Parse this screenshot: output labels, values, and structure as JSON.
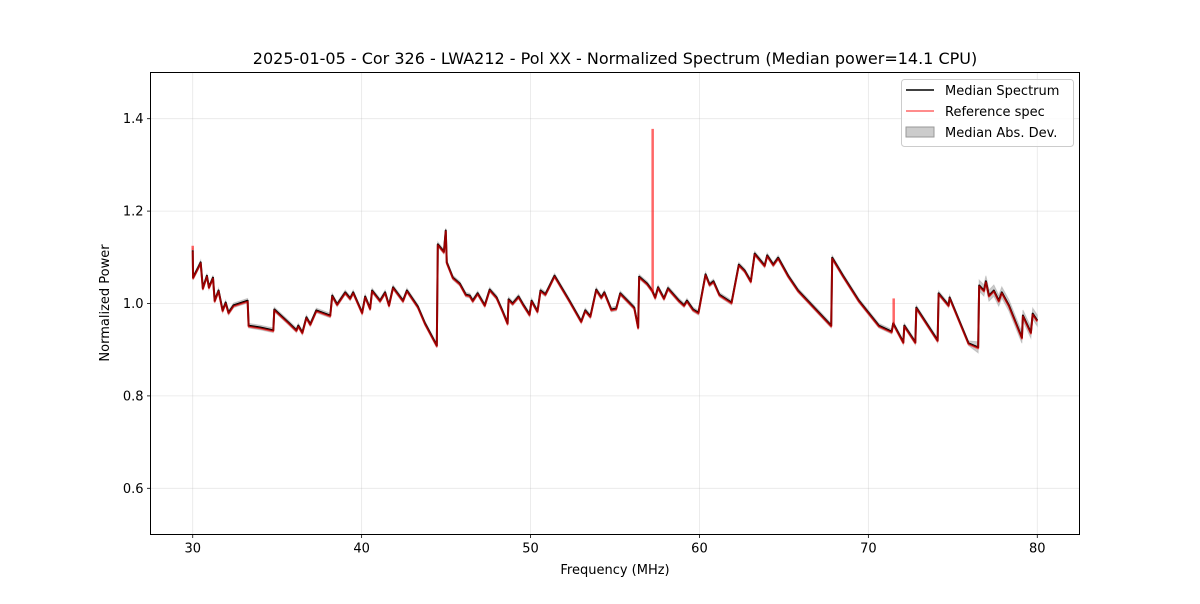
{
  "chart_data": {
    "type": "line",
    "title": "2025-01-05 - Cor 326 - LWA212 - Pol XX - Normalized Spectrum (Median power=14.1 CPU)",
    "xlabel": "Frequency (MHz)",
    "ylabel": "Normalized Power",
    "xlim": [
      27.5,
      82.5
    ],
    "ylim": [
      0.5,
      1.5
    ],
    "xticks": [
      30,
      40,
      50,
      60,
      70,
      80
    ],
    "yticks": [
      0.6,
      0.8,
      1.0,
      1.2,
      1.4
    ],
    "xtick_labels": [
      "30",
      "40",
      "50",
      "60",
      "70",
      "80"
    ],
    "ytick_labels": [
      "0.6",
      "0.8",
      "1.0",
      "1.2",
      "1.4"
    ],
    "grid": true,
    "legend": {
      "placement": "top-right",
      "entries": [
        "Median Spectrum",
        "Reference spec",
        "Median Abs. Dev."
      ]
    },
    "colors": {
      "median": "#000000",
      "reference": "#ff0000",
      "mad": "#999999"
    },
    "series": [
      {
        "name": "Median Spectrum",
        "x": [
          30,
          30.02,
          30.3,
          30.47,
          30.6,
          30.84,
          30.96,
          31.2,
          31.3,
          31.53,
          31.77,
          31.95,
          32.12,
          32.42,
          33.25,
          33.31,
          34.0,
          34.77,
          34.83,
          35.66,
          36.14,
          36.25,
          36.49,
          36.73,
          36.96,
          37.32,
          38.14,
          38.26,
          38.55,
          39.03,
          39.32,
          39.5,
          40.03,
          40.21,
          40.5,
          40.62,
          41.09,
          41.39,
          41.62,
          41.86,
          42.45,
          42.68,
          43.33,
          43.75,
          44.45,
          44.51,
          44.87,
          44.98,
          45.04,
          45.4,
          45.81,
          46.17,
          46.4,
          46.58,
          46.87,
          47.29,
          47.58,
          47.99,
          48.35,
          48.64,
          48.7,
          48.94,
          49.29,
          49.59,
          49.94,
          50.06,
          50.41,
          50.59,
          50.88,
          51.06,
          51.42,
          52.3,
          53.0,
          53.24,
          53.54,
          53.89,
          54.19,
          54.37,
          54.78,
          55.07,
          55.31,
          56.14,
          56.37,
          56.43,
          56.9,
          57.2,
          57.38,
          57.55,
          57.9,
          58.14,
          58.79,
          59.09,
          59.26,
          59.62,
          59.94,
          60.36,
          60.6,
          60.83,
          61.18,
          61.9,
          62.33,
          62.68,
          63.04,
          63.27,
          63.86,
          64.01,
          64.37,
          64.66,
          65.25,
          65.84,
          67.8,
          67.86,
          68.5,
          69.44,
          70.62,
          71.38,
          71.47,
          72.07,
          72.13,
          72.78,
          72.84,
          74.1,
          74.16,
          74.75,
          74.81,
          75.93,
          76.5,
          76.56,
          76.84,
          76.96,
          77.14,
          77.43,
          77.72,
          77.9,
          78.32,
          79.09,
          79.15,
          79.62,
          79.73,
          80.0
        ],
        "y": [
          1.115,
          1.056,
          1.076,
          1.089,
          1.033,
          1.06,
          1.035,
          1.056,
          1.006,
          1.028,
          0.985,
          1.002,
          0.98,
          0.996,
          1.006,
          0.952,
          0.948,
          0.942,
          0.987,
          0.959,
          0.942,
          0.952,
          0.937,
          0.97,
          0.955,
          0.985,
          0.974,
          1.017,
          0.998,
          1.024,
          1.011,
          1.024,
          0.98,
          1.015,
          0.989,
          1.028,
          1.006,
          1.024,
          0.996,
          1.035,
          1.006,
          1.028,
          0.993,
          0.957,
          0.909,
          1.128,
          1.112,
          1.158,
          1.089,
          1.056,
          1.043,
          1.019,
          1.017,
          1.006,
          1.022,
          0.996,
          1.03,
          1.013,
          0.983,
          0.957,
          1.009,
          1.0,
          1.015,
          0.996,
          0.976,
          1.006,
          0.983,
          1.028,
          1.02,
          1.033,
          1.06,
          1.006,
          0.961,
          0.985,
          0.972,
          1.03,
          1.013,
          1.024,
          0.987,
          0.989,
          1.022,
          0.991,
          0.948,
          1.058,
          1.043,
          1.028,
          1.013,
          1.035,
          1.011,
          1.033,
          1.006,
          0.996,
          1.006,
          0.987,
          0.98,
          1.063,
          1.041,
          1.048,
          1.019,
          1.002,
          1.084,
          1.071,
          1.048,
          1.108,
          1.082,
          1.104,
          1.084,
          1.099,
          1.06,
          1.028,
          0.952,
          1.099,
          1.06,
          1.006,
          0.952,
          0.939,
          0.957,
          0.916,
          0.952,
          0.916,
          0.991,
          0.92,
          1.022,
          0.996,
          1.013,
          0.914,
          0.905,
          1.039,
          1.028,
          1.048,
          1.017,
          1.028,
          1.006,
          1.024,
          0.996,
          0.926,
          0.974,
          0.937,
          0.978,
          0.963
        ]
      },
      {
        "name": "Reference spec",
        "note_spikes": true,
        "spikes": [
          {
            "x": 57.23,
            "y": 1.378
          },
          {
            "x": 71.5,
            "y": 1.011
          },
          {
            "x": 30.0,
            "y": 1.125
          }
        ]
      },
      {
        "name": "Median Abs. Dev.",
        "half_width": [
          {
            "x_from": 30,
            "x_to": 76.4,
            "value": 0.005
          },
          {
            "x_from": 76.4,
            "x_to": 80,
            "value": 0.012
          }
        ]
      }
    ]
  }
}
